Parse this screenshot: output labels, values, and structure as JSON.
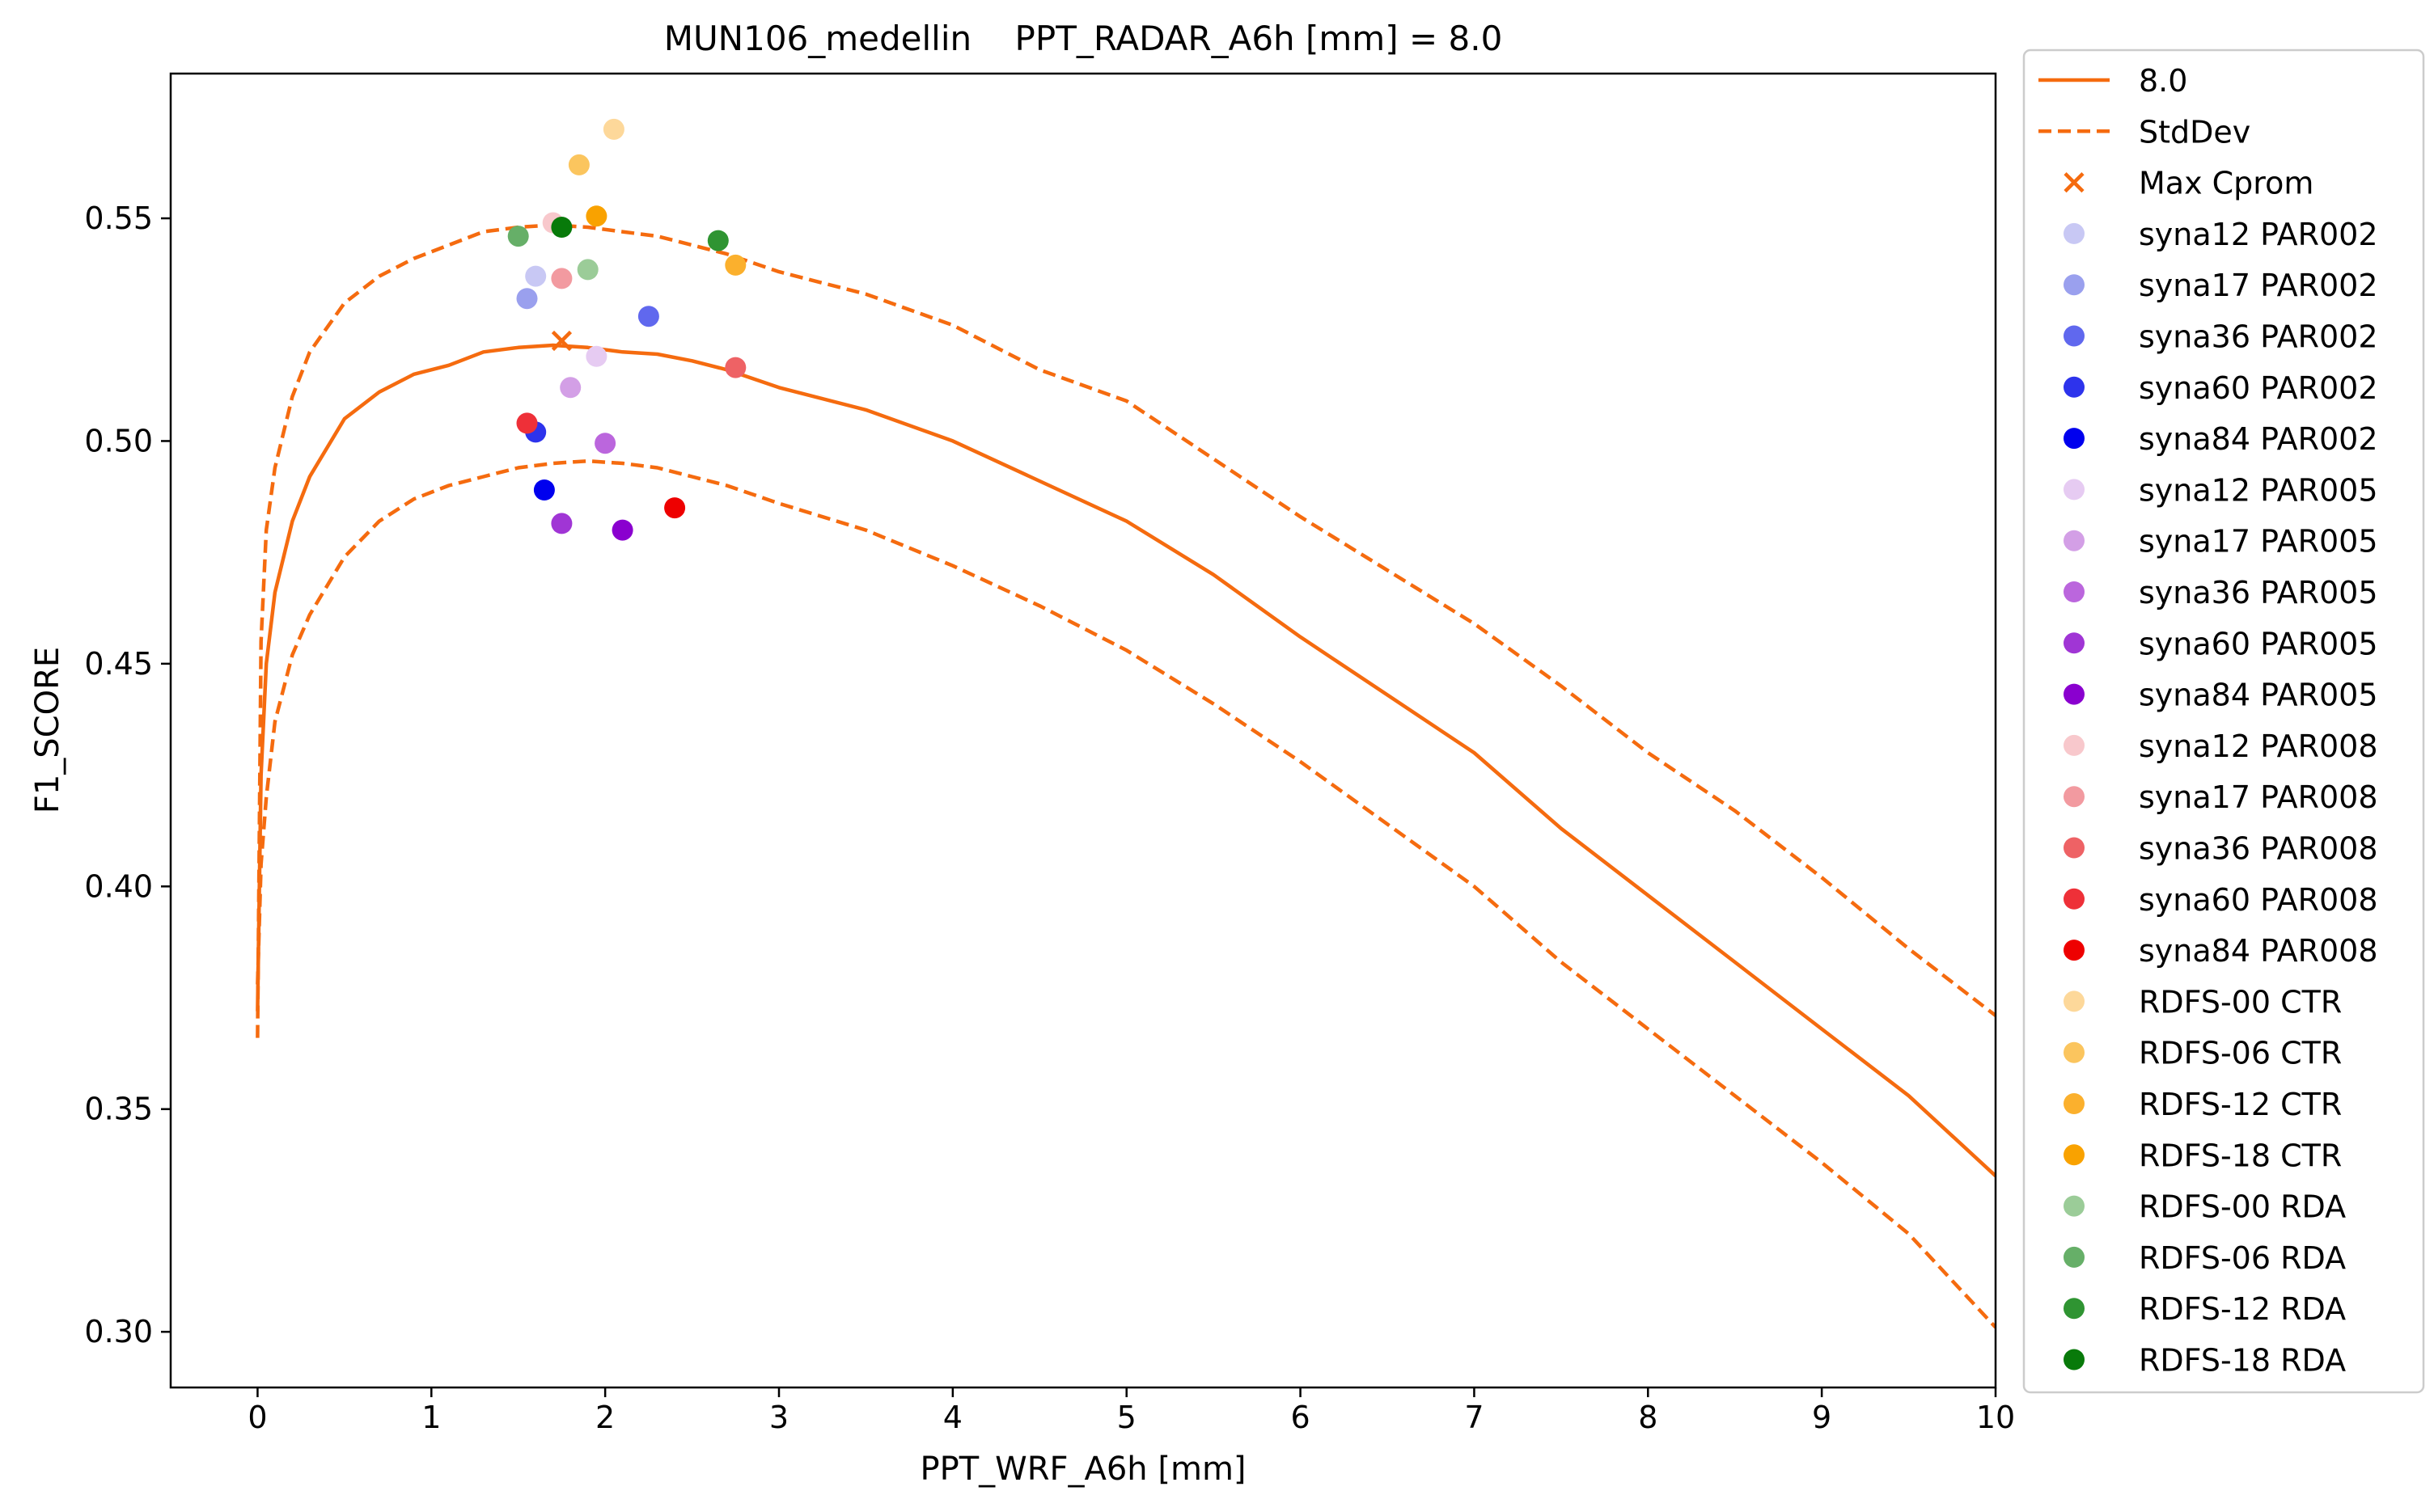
{
  "chart_data": {
    "type": "line",
    "title": "MUN106_medellin    PPT_RADAR_A6h [mm] = 8.0",
    "xlabel": "PPT_WRF_A6h [mm]",
    "ylabel": "F1_SCORE",
    "xlim": [
      -0.5,
      10
    ],
    "ylim": [
      0.2875,
      0.5825
    ],
    "xticks": [
      0,
      1,
      2,
      3,
      4,
      5,
      6,
      7,
      8,
      9,
      10
    ],
    "xtick_labels": [
      "0",
      "1",
      "2",
      "3",
      "4",
      "5",
      "6",
      "7",
      "8",
      "9",
      "10"
    ],
    "yticks": [
      0.3,
      0.35,
      0.4,
      0.45,
      0.5,
      0.55
    ],
    "ytick_labels": [
      "0.30",
      "0.35",
      "0.40",
      "0.45",
      "0.50",
      "0.55"
    ],
    "grid": false,
    "legend_position": "outside-right",
    "series": [
      {
        "name": "8.0",
        "kind": "line",
        "style": "solid",
        "color": "#f56b0f",
        "x": [
          0,
          0.02,
          0.05,
          0.1,
          0.2,
          0.3,
          0.5,
          0.7,
          0.9,
          1.1,
          1.3,
          1.5,
          1.7,
          1.9,
          2.1,
          2.3,
          2.5,
          2.7,
          3.0,
          3.5,
          4.0,
          4.5,
          5.0,
          5.5,
          6.0,
          6.5,
          7.0,
          7.5,
          8.0,
          8.5,
          9.0,
          9.5,
          10.0
        ],
        "y": [
          0.372,
          0.425,
          0.45,
          0.466,
          0.482,
          0.492,
          0.505,
          0.511,
          0.515,
          0.517,
          0.52,
          0.521,
          0.5215,
          0.521,
          0.52,
          0.5195,
          0.518,
          0.516,
          0.512,
          0.507,
          0.5,
          0.491,
          0.482,
          0.47,
          0.456,
          0.443,
          0.43,
          0.413,
          0.398,
          0.383,
          0.368,
          0.353,
          0.335
        ]
      },
      {
        "name": "StdDev",
        "kind": "line",
        "style": "dashed",
        "color": "#f56b0f",
        "x": [
          0,
          0.02,
          0.05,
          0.1,
          0.2,
          0.3,
          0.5,
          0.7,
          0.9,
          1.1,
          1.3,
          1.5,
          1.7,
          1.9,
          2.1,
          2.3,
          2.5,
          2.7,
          3.0,
          3.5,
          4.0,
          4.5,
          5.0,
          5.5,
          6.0,
          6.5,
          7.0,
          7.5,
          8.0,
          8.5,
          9.0,
          9.5,
          10.0
        ],
        "y": [
          0.366,
          0.455,
          0.48,
          0.494,
          0.51,
          0.52,
          0.531,
          0.537,
          0.541,
          0.544,
          0.547,
          0.548,
          0.5485,
          0.548,
          0.547,
          0.546,
          0.544,
          0.542,
          0.538,
          0.533,
          0.526,
          0.516,
          0.509,
          0.496,
          0.483,
          0.471,
          0.459,
          0.445,
          0.43,
          0.417,
          0.402,
          0.386,
          0.371
        ]
      },
      {
        "name": "",
        "kind": "line",
        "style": "dashed",
        "color": "#f56b0f",
        "x": [
          0,
          0.02,
          0.05,
          0.1,
          0.2,
          0.3,
          0.5,
          0.7,
          0.9,
          1.1,
          1.3,
          1.5,
          1.7,
          1.9,
          2.1,
          2.3,
          2.5,
          2.7,
          3.0,
          3.5,
          4.0,
          4.5,
          5.0,
          5.5,
          6.0,
          6.5,
          7.0,
          7.5,
          8.0,
          8.5,
          9.0,
          9.5,
          10.0
        ],
        "y": [
          0.378,
          0.405,
          0.42,
          0.437,
          0.452,
          0.461,
          0.474,
          0.482,
          0.487,
          0.49,
          0.492,
          0.494,
          0.495,
          0.4955,
          0.495,
          0.494,
          0.492,
          0.49,
          0.486,
          0.48,
          0.472,
          0.463,
          0.453,
          0.441,
          0.428,
          0.414,
          0.4,
          0.383,
          0.368,
          0.353,
          0.338,
          0.322,
          0.301
        ]
      },
      {
        "name": "Max Cprom",
        "kind": "marker-x",
        "color": "#f56b0f",
        "x": [
          1.75
        ],
        "y": [
          0.5225
        ]
      },
      {
        "name": "syna12 PAR002",
        "kind": "point",
        "color": "#c8c8f4",
        "x": [
          1.6
        ],
        "y": [
          0.537
        ]
      },
      {
        "name": "syna17 PAR002",
        "kind": "point",
        "color": "#9aa0ee",
        "x": [
          1.55
        ],
        "y": [
          0.532
        ]
      },
      {
        "name": "syna36 PAR002",
        "kind": "point",
        "color": "#6068ee",
        "x": [
          2.25
        ],
        "y": [
          0.528
        ]
      },
      {
        "name": "syna60 PAR002",
        "kind": "point",
        "color": "#2d33ec",
        "x": [
          1.6
        ],
        "y": [
          0.502
        ]
      },
      {
        "name": "syna84 PAR002",
        "kind": "point",
        "color": "#0000ee",
        "x": [
          1.65
        ],
        "y": [
          0.489
        ]
      },
      {
        "name": "syna12 PAR005",
        "kind": "point",
        "color": "#e6cbf2",
        "x": [
          1.95
        ],
        "y": [
          0.519
        ]
      },
      {
        "name": "syna17 PAR005",
        "kind": "point",
        "color": "#d39fe6",
        "x": [
          1.8
        ],
        "y": [
          0.512
        ]
      },
      {
        "name": "syna36 PAR005",
        "kind": "point",
        "color": "#bb66dd",
        "x": [
          2.0
        ],
        "y": [
          0.4995
        ]
      },
      {
        "name": "syna60 PAR005",
        "kind": "point",
        "color": "#a035d5",
        "x": [
          1.75
        ],
        "y": [
          0.4815
        ]
      },
      {
        "name": "syna84 PAR005",
        "kind": "point",
        "color": "#8a00cf",
        "x": [
          2.1
        ],
        "y": [
          0.48
        ]
      },
      {
        "name": "syna12 PAR008",
        "kind": "point",
        "color": "#f8c8cc",
        "x": [
          1.7
        ],
        "y": [
          0.549
        ]
      },
      {
        "name": "syna17 PAR008",
        "kind": "point",
        "color": "#f29aa0",
        "x": [
          1.75
        ],
        "y": [
          0.5365
        ]
      },
      {
        "name": "syna36 PAR008",
        "kind": "point",
        "color": "#ee6265",
        "x": [
          2.75
        ],
        "y": [
          0.5165
        ]
      },
      {
        "name": "syna60 PAR008",
        "kind": "point",
        "color": "#ee3038",
        "x": [
          1.55
        ],
        "y": [
          0.504
        ]
      },
      {
        "name": "syna84 PAR008",
        "kind": "point",
        "color": "#ee0000",
        "x": [
          2.4
        ],
        "y": [
          0.485
        ]
      },
      {
        "name": "RDFS-00 CTR",
        "kind": "point",
        "color": "#fdd89a",
        "x": [
          2.05
        ],
        "y": [
          0.57
        ]
      },
      {
        "name": "RDFS-06 CTR",
        "kind": "point",
        "color": "#fbc55e",
        "x": [
          1.85
        ],
        "y": [
          0.562
        ]
      },
      {
        "name": "RDFS-12 CTR",
        "kind": "point",
        "color": "#fbb02d",
        "x": [
          2.75
        ],
        "y": [
          0.5395
        ]
      },
      {
        "name": "RDFS-18 CTR",
        "kind": "point",
        "color": "#f9a200",
        "x": [
          1.95
        ],
        "y": [
          0.5505
        ]
      },
      {
        "name": "RDFS-00 RDA",
        "kind": "point",
        "color": "#9bcc98",
        "x": [
          1.9
        ],
        "y": [
          0.5385
        ]
      },
      {
        "name": "RDFS-06 RDA",
        "kind": "point",
        "color": "#66af68",
        "x": [
          1.5
        ],
        "y": [
          0.546
        ]
      },
      {
        "name": "RDFS-12 RDA",
        "kind": "point",
        "color": "#2f9432",
        "x": [
          2.65
        ],
        "y": [
          0.545
        ]
      },
      {
        "name": "RDFS-18 RDA",
        "kind": "point",
        "color": "#087a0a",
        "x": [
          1.75
        ],
        "y": [
          0.548
        ]
      }
    ]
  }
}
